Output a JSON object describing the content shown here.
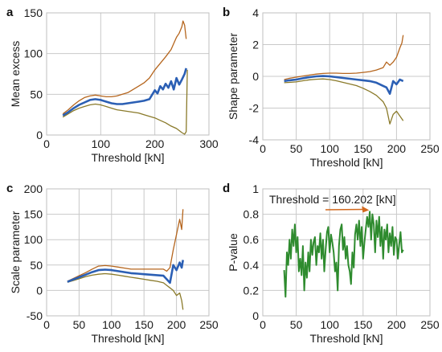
{
  "chart_data": [
    {
      "panel_label": "a",
      "type": "line",
      "xlabel": "Threshold [kN]",
      "ylabel": "Mean excess",
      "xlim": [
        0,
        300
      ],
      "ylim": [
        0,
        150
      ],
      "xticks": [
        0,
        100,
        200,
        300
      ],
      "yticks": [
        0,
        50,
        100,
        150
      ],
      "grid": true,
      "series": [
        {
          "role": "estimate",
          "color": "#2b5fb4",
          "x": [
            30,
            40,
            50,
            60,
            70,
            80,
            90,
            100,
            110,
            120,
            130,
            140,
            150,
            160,
            170,
            180,
            190,
            200,
            205,
            210,
            215,
            220,
            225,
            230,
            235,
            240,
            245,
            250,
            255,
            258
          ],
          "y": [
            24,
            28,
            33,
            37,
            40,
            43,
            44,
            43,
            41,
            39,
            38,
            38,
            39,
            40,
            41,
            42,
            44,
            55,
            51,
            60,
            56,
            63,
            58,
            66,
            56,
            70,
            62,
            68,
            75,
            82
          ]
        },
        {
          "role": "upper-ci",
          "color": "#b5651d",
          "x": [
            30,
            40,
            50,
            60,
            70,
            80,
            90,
            100,
            110,
            120,
            130,
            140,
            150,
            160,
            170,
            180,
            190,
            200,
            210,
            220,
            230,
            240,
            245,
            250,
            252,
            255,
            258
          ],
          "y": [
            26,
            31,
            37,
            42,
            46,
            48,
            49,
            48,
            47,
            47,
            48,
            50,
            52,
            56,
            60,
            64,
            70,
            80,
            88,
            96,
            105,
            120,
            125,
            133,
            140,
            135,
            118
          ]
        },
        {
          "role": "lower-ci",
          "color": "#8a7a2a",
          "x": [
            30,
            40,
            50,
            60,
            70,
            80,
            90,
            100,
            110,
            120,
            130,
            140,
            150,
            160,
            170,
            180,
            190,
            200,
            210,
            220,
            230,
            240,
            250,
            255,
            258,
            260
          ],
          "y": [
            22,
            26,
            30,
            33,
            35,
            37,
            38,
            37,
            35,
            33,
            31,
            30,
            29,
            28,
            27,
            25,
            23,
            21,
            18,
            15,
            11,
            8,
            3,
            1,
            4,
            80
          ]
        }
      ]
    },
    {
      "panel_label": "b",
      "type": "line",
      "xlabel": "Threshold [kN]",
      "ylabel": "Shape parameter",
      "xlim": [
        0,
        250
      ],
      "ylim": [
        -4,
        4
      ],
      "xticks": [
        0,
        50,
        100,
        150,
        200,
        250
      ],
      "yticks": [
        -4,
        -2,
        0,
        2,
        4
      ],
      "grid": true,
      "series": [
        {
          "role": "estimate",
          "color": "#2b5fb4",
          "x": [
            32,
            40,
            50,
            60,
            70,
            80,
            90,
            100,
            110,
            120,
            130,
            140,
            150,
            160,
            170,
            175,
            180,
            185,
            190,
            195,
            200,
            205,
            210
          ],
          "y": [
            -0.3,
            -0.25,
            -0.2,
            -0.12,
            -0.05,
            0.0,
            0.02,
            0.0,
            -0.05,
            -0.1,
            -0.15,
            -0.2,
            -0.25,
            -0.3,
            -0.4,
            -0.5,
            -0.6,
            -0.7,
            -1.1,
            -0.3,
            -0.5,
            -0.2,
            -0.3
          ]
        },
        {
          "role": "upper-ci",
          "color": "#b5651d",
          "x": [
            32,
            40,
            50,
            60,
            70,
            80,
            90,
            100,
            110,
            120,
            130,
            140,
            150,
            160,
            170,
            180,
            185,
            190,
            195,
            200,
            205,
            208,
            210
          ],
          "y": [
            -0.2,
            -0.12,
            -0.05,
            0.02,
            0.08,
            0.14,
            0.18,
            0.2,
            0.2,
            0.18,
            0.18,
            0.2,
            0.25,
            0.3,
            0.4,
            0.55,
            0.9,
            0.7,
            0.9,
            1.2,
            1.8,
            2.1,
            2.6
          ]
        },
        {
          "role": "lower-ci",
          "color": "#8a7a2a",
          "x": [
            32,
            40,
            50,
            60,
            70,
            80,
            90,
            100,
            110,
            120,
            130,
            140,
            150,
            160,
            170,
            180,
            185,
            190,
            195,
            200,
            205,
            210
          ],
          "y": [
            -0.4,
            -0.38,
            -0.35,
            -0.28,
            -0.22,
            -0.18,
            -0.16,
            -0.2,
            -0.28,
            -0.38,
            -0.48,
            -0.58,
            -0.75,
            -0.95,
            -1.2,
            -1.6,
            -2.0,
            -3.0,
            -2.4,
            -2.2,
            -2.5,
            -2.8
          ]
        }
      ]
    },
    {
      "panel_label": "c",
      "type": "line",
      "xlabel": "Threshold [kN]",
      "ylabel": "Scale parameter",
      "xlim": [
        0,
        250
      ],
      "ylim": [
        -50,
        200
      ],
      "xticks": [
        0,
        50,
        100,
        150,
        200,
        250
      ],
      "yticks": [
        -50,
        0,
        50,
        100,
        150,
        200
      ],
      "grid": true,
      "series": [
        {
          "role": "estimate",
          "color": "#2b5fb4",
          "x": [
            32,
            40,
            50,
            60,
            70,
            80,
            90,
            100,
            110,
            120,
            130,
            140,
            150,
            160,
            170,
            180,
            185,
            190,
            195,
            200,
            205,
            208,
            210
          ],
          "y": [
            17,
            21,
            26,
            31,
            36,
            40,
            41,
            40,
            38,
            36,
            34,
            33,
            32,
            31,
            30,
            29,
            22,
            15,
            50,
            40,
            55,
            45,
            60
          ]
        },
        {
          "role": "upper-ci",
          "color": "#b5651d",
          "x": [
            32,
            40,
            50,
            60,
            70,
            80,
            90,
            100,
            110,
            120,
            130,
            140,
            150,
            160,
            170,
            180,
            185,
            190,
            195,
            200,
            205,
            208,
            210
          ],
          "y": [
            18,
            23,
            29,
            35,
            42,
            48,
            49,
            48,
            46,
            44,
            42,
            42,
            42,
            42,
            42,
            42,
            38,
            45,
            80,
            110,
            140,
            120,
            160
          ]
        },
        {
          "role": "lower-ci",
          "color": "#8a7a2a",
          "x": [
            32,
            40,
            50,
            60,
            70,
            80,
            90,
            100,
            110,
            120,
            130,
            140,
            150,
            160,
            170,
            180,
            185,
            190,
            195,
            200,
            205,
            208,
            210
          ],
          "y": [
            16,
            19,
            23,
            27,
            30,
            32,
            33,
            32,
            30,
            28,
            26,
            24,
            22,
            20,
            18,
            15,
            10,
            5,
            0,
            -10,
            -5,
            -20,
            -38
          ]
        }
      ]
    },
    {
      "panel_label": "d",
      "type": "line",
      "xlabel": "Threshold [kN]",
      "ylabel": "P-value",
      "xlim": [
        0,
        250
      ],
      "ylim": [
        0,
        1
      ],
      "xticks": [
        0,
        50,
        100,
        150,
        200,
        250
      ],
      "yticks": [
        0,
        0.2,
        0.4,
        0.6,
        0.8,
        1
      ],
      "grid": true,
      "annotation": {
        "text": "Threshold = 160.202 [kN]",
        "x": 160.202,
        "y": 0.82,
        "color": "#d2691e"
      },
      "series": [
        {
          "role": "p-value",
          "color": "#2e8b2e",
          "x": [
            32,
            34,
            36,
            38,
            40,
            42,
            44,
            46,
            48,
            50,
            52,
            54,
            56,
            58,
            60,
            62,
            64,
            66,
            68,
            70,
            72,
            74,
            76,
            78,
            80,
            82,
            84,
            86,
            88,
            90,
            92,
            94,
            96,
            98,
            100,
            102,
            104,
            106,
            108,
            110,
            112,
            114,
            116,
            118,
            120,
            122,
            124,
            126,
            128,
            130,
            132,
            134,
            136,
            138,
            140,
            142,
            144,
            146,
            148,
            150,
            152,
            154,
            156,
            158,
            160,
            162,
            164,
            166,
            168,
            170,
            172,
            174,
            176,
            178,
            180,
            182,
            184,
            186,
            188,
            190,
            192,
            194,
            196,
            198,
            200,
            202,
            204,
            206,
            208,
            210
          ],
          "y": [
            0.36,
            0.15,
            0.5,
            0.4,
            0.6,
            0.45,
            0.68,
            0.55,
            0.72,
            0.5,
            0.62,
            0.35,
            0.45,
            0.32,
            0.55,
            0.2,
            0.42,
            0.3,
            0.5,
            0.35,
            0.6,
            0.48,
            0.58,
            0.62,
            0.4,
            0.55,
            0.5,
            0.65,
            0.45,
            0.6,
            0.35,
            0.52,
            0.66,
            0.7,
            0.5,
            0.64,
            0.58,
            0.5,
            0.35,
            0.42,
            0.2,
            0.55,
            0.68,
            0.72,
            0.52,
            0.62,
            0.45,
            0.55,
            0.4,
            0.35,
            0.25,
            0.5,
            0.38,
            0.64,
            0.72,
            0.6,
            0.75,
            0.55,
            0.7,
            0.45,
            0.58,
            0.68,
            0.78,
            0.7,
            0.82,
            0.6,
            0.8,
            0.72,
            0.5,
            0.75,
            0.62,
            0.78,
            0.55,
            0.7,
            0.45,
            0.68,
            0.6,
            0.72,
            0.5,
            0.65,
            0.55,
            0.7,
            0.48,
            0.62,
            0.6,
            0.45,
            0.56,
            0.66,
            0.5,
            0.52
          ]
        }
      ]
    }
  ]
}
